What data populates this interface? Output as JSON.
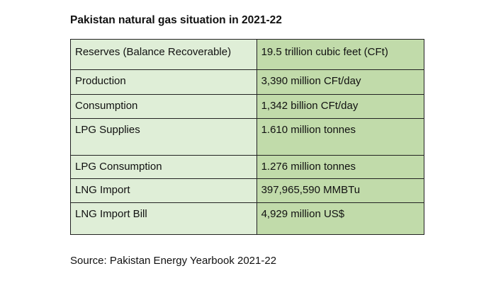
{
  "title": "Pakistan natural gas situation in 2021-22",
  "table": {
    "rows": [
      {
        "label": "Reserves (Balance Recoverable)",
        "value": "19.5 trillion cubic feet (CFt)"
      },
      {
        "label": "Production",
        "value": "3,390 million CFt/day"
      },
      {
        "label": "Consumption",
        "value": "1,342 billion CFt/day"
      },
      {
        "label": "LPG Supplies",
        "value": "1.610 million tonnes"
      },
      {
        "label": "LPG Consumption",
        "value": "1.276 million tonnes"
      },
      {
        "label": "LNG Import",
        "value": "397,965,590 MMBTu"
      },
      {
        "label": "LNG Import Bill",
        "value": "4,929 million US$"
      }
    ]
  },
  "source": "Source: Pakistan Energy Yearbook 2021-22",
  "colors": {
    "label_column": "#dfeed7",
    "value_column": "#c1dbaa",
    "border": "#222222"
  }
}
